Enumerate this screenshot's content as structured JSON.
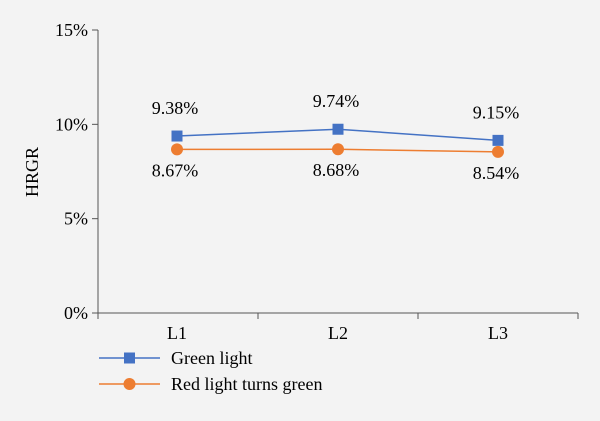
{
  "chart_data": {
    "type": "line",
    "categories": [
      "L1",
      "L2",
      "L3"
    ],
    "ylabel": "HRGR",
    "ylim": [
      0,
      15
    ],
    "yticks": [
      "0%",
      "5%",
      "10%",
      "15%"
    ],
    "grid": false,
    "legend_position": "bottom",
    "series": [
      {
        "name": "Green light",
        "values": [
          9.38,
          9.74,
          9.15
        ],
        "labels": [
          "9.38%",
          "9.74%",
          "9.15%"
        ],
        "color": "#4472c4",
        "marker": "square"
      },
      {
        "name": "Red light turns green",
        "values": [
          8.67,
          8.68,
          8.54
        ],
        "labels": [
          "8.67%",
          "8.68%",
          "8.54%"
        ],
        "color": "#ed7d31",
        "marker": "circle"
      }
    ]
  }
}
